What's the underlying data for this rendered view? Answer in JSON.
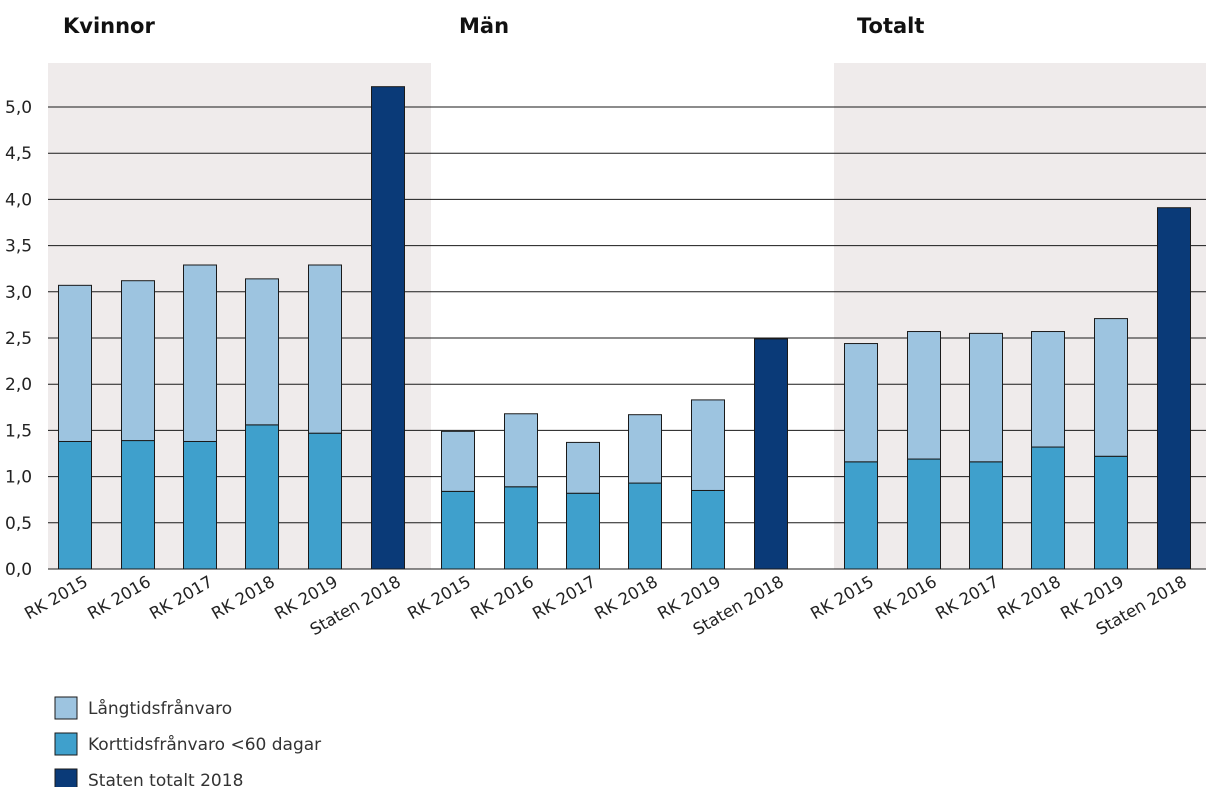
{
  "chart_data": {
    "type": "bar",
    "stacked": true,
    "groups": [
      "Kvinnor",
      "Män",
      "Totalt"
    ],
    "categories": [
      "RK 2015",
      "RK 2016",
      "RK 2017",
      "RK 2018",
      "RK 2019",
      "Staten 2018"
    ],
    "series": [
      {
        "name": "Korttidsfrånvaro <60 dagar",
        "color": "#3fa0cc",
        "values": [
          [
            1.38,
            1.39,
            1.38,
            1.56,
            1.47,
            null
          ],
          [
            0.84,
            0.89,
            0.82,
            0.93,
            0.85,
            null
          ],
          [
            1.16,
            1.19,
            1.16,
            1.32,
            1.22,
            null
          ]
        ]
      },
      {
        "name": "Långtidsfrånvaro",
        "color": "#9dc4e0",
        "values": [
          [
            1.69,
            1.73,
            1.91,
            1.58,
            1.82,
            null
          ],
          [
            0.65,
            0.79,
            0.55,
            0.74,
            0.98,
            null
          ],
          [
            1.28,
            1.38,
            1.39,
            1.25,
            1.49,
            null
          ]
        ]
      },
      {
        "name": "Staten totalt 2018",
        "color": "#0a3a78",
        "values": [
          [
            null,
            null,
            null,
            null,
            null,
            5.22
          ],
          [
            null,
            null,
            null,
            null,
            null,
            2.49
          ],
          [
            null,
            null,
            null,
            null,
            null,
            3.91
          ]
        ]
      }
    ],
    "yticks": [
      "0,0",
      "0,5",
      "1,0",
      "1,5",
      "2,0",
      "2,5",
      "3,0",
      "3,5",
      "4,0",
      "4,5",
      "5,0"
    ],
    "ylim": [
      0,
      5.5
    ],
    "grid": true,
    "legend_position": "bottom-left",
    "shaded_groups": [
      "Kvinnor",
      "Totalt"
    ],
    "shade_color": "#efebeb",
    "title": "",
    "xlabel": "",
    "ylabel": ""
  }
}
